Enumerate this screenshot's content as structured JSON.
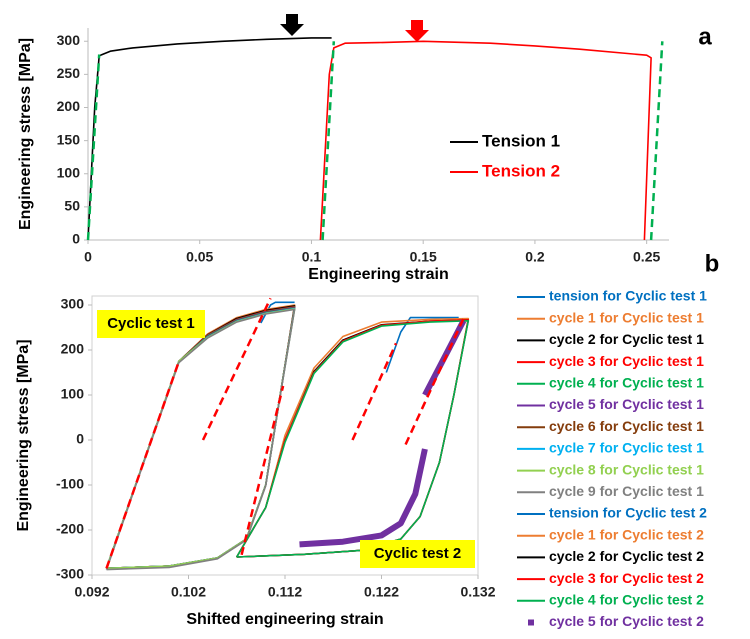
{
  "chart_data": [
    {
      "type": "line",
      "panel_label": "a",
      "x_label": "Engineering strain",
      "y_label": "Engineering stress [MPa]",
      "xlim": [
        0,
        0.26
      ],
      "xticks": [
        0,
        0.05,
        0.1,
        0.15,
        0.2,
        0.25
      ],
      "ylim": [
        0,
        320
      ],
      "yticks": [
        0,
        50,
        100,
        150,
        200,
        250,
        300
      ],
      "grid": false,
      "legend": "center right",
      "series": [
        {
          "name": "Tension 1",
          "color": "#000000",
          "x": [
            0,
            0.003,
            0.005,
            0.01,
            0.02,
            0.04,
            0.06,
            0.08,
            0.1,
            0.109
          ],
          "values": [
            0,
            200,
            278,
            285,
            290,
            296,
            300,
            303,
            305,
            305
          ]
        },
        {
          "name": "Tension 2",
          "color": "#ff0000",
          "x": [
            0.104,
            0.108,
            0.11,
            0.115,
            0.13,
            0.15,
            0.18,
            0.2,
            0.22,
            0.25,
            0.252,
            0.249
          ],
          "values": [
            0,
            250,
            290,
            297,
            298,
            300,
            297,
            293,
            288,
            279,
            275,
            0
          ]
        },
        {
          "color": "#00b050",
          "line_style": "dashed",
          "x": [
            0,
            0.005
          ],
          "values": [
            0,
            280
          ]
        },
        {
          "color": "#00b050",
          "line_style": "dashed",
          "x": [
            0.105,
            0.11
          ],
          "values": [
            0,
            300
          ]
        },
        {
          "color": "#00b050",
          "line_style": "dashed",
          "x": [
            0.252,
            0.257
          ],
          "values": [
            0,
            300
          ]
        }
      ]
    },
    {
      "type": "line",
      "panel_label": "b",
      "x_label": "Shifted engineering strain",
      "y_label": "Engineering stress [MPa]",
      "xlim": [
        0.092,
        0.132
      ],
      "xticks": [
        0.092,
        0.102,
        0.112,
        0.122,
        0.132
      ],
      "ylim": [
        -300,
        320
      ],
      "yticks": [
        -300,
        -200,
        -100,
        0,
        100,
        200,
        300
      ],
      "grid": false,
      "legend": "outside right",
      "annotations": [
        "Cyclic test 1",
        "Cyclic test 2"
      ],
      "series": [
        {
          "name": "tension for Cyclic test 1",
          "color": "#0070c0",
          "x": [
            0.1095,
            0.1105,
            0.111,
            0.113
          ],
          "values": [
            260,
            300,
            306,
            306
          ]
        },
        {
          "name": "cycle 1 for Cyclic test 1",
          "color": "#ed7d31",
          "x": [
            0.0935,
            0.097,
            0.101,
            0.104,
            0.107,
            0.11,
            0.113,
            0.1115,
            0.11,
            0.108,
            0.105,
            0.1,
            0.0935
          ],
          "values": [
            -285,
            -70,
            175,
            236,
            272,
            290,
            300,
            100,
            -100,
            -220,
            -262,
            -280,
            -285
          ]
        },
        {
          "name": "cycle 2 for Cyclic test 1",
          "color": "#000000",
          "x": [
            0.0935,
            0.097,
            0.101,
            0.104,
            0.107,
            0.11,
            0.113,
            0.1115,
            0.11,
            0.108,
            0.105,
            0.1,
            0.0935
          ],
          "values": [
            -285,
            -70,
            175,
            234,
            270,
            288,
            298,
            100,
            -100,
            -220,
            -262,
            -280,
            -285
          ]
        },
        {
          "name": "cycle 3 for Cyclic test 1",
          "color": "#ff0000",
          "x": [
            0.0935,
            0.097,
            0.101,
            0.104,
            0.107,
            0.11,
            0.113,
            0.1115,
            0.11,
            0.108,
            0.105,
            0.1,
            0.0935
          ],
          "values": [
            -285,
            -70,
            175,
            233,
            268,
            286,
            296,
            100,
            -100,
            -220,
            -262,
            -280,
            -285
          ]
        },
        {
          "name": "cycle 4 for Cyclic test 1",
          "color": "#00b050",
          "x": [
            0.0935,
            0.097,
            0.101,
            0.104,
            0.107,
            0.11,
            0.113,
            0.1115,
            0.11,
            0.108,
            0.105,
            0.1,
            0.0935
          ],
          "values": [
            -285,
            -70,
            175,
            232,
            267,
            285,
            295,
            100,
            -100,
            -220,
            -262,
            -280,
            -285
          ]
        },
        {
          "name": "cycle 5 for Cyclic test 1",
          "color": "#7030a0",
          "x": [
            0.0935,
            0.097,
            0.101,
            0.104,
            0.107,
            0.11,
            0.113,
            0.1115,
            0.11,
            0.108,
            0.105,
            0.1,
            0.0935
          ],
          "values": [
            -285,
            -70,
            175,
            231,
            266,
            284,
            294,
            100,
            -100,
            -220,
            -262,
            -280,
            -285
          ]
        },
        {
          "name": "cycle 6 for Cyclic test 1",
          "color": "#843c0c",
          "x": [
            0.0935,
            0.097,
            0.101,
            0.104,
            0.107,
            0.11,
            0.113,
            0.1115,
            0.11,
            0.108,
            0.105,
            0.1,
            0.0935
          ],
          "values": [
            -285,
            -70,
            175,
            230,
            265,
            283,
            293,
            100,
            -100,
            -220,
            -262,
            -280,
            -285
          ]
        },
        {
          "name": "cycle 7 for Cyclic test 1",
          "color": "#00b0f0",
          "x": [
            0.0935,
            0.097,
            0.101,
            0.104,
            0.107,
            0.11,
            0.113,
            0.1115,
            0.11,
            0.108,
            0.105,
            0.1,
            0.0935
          ],
          "values": [
            -285,
            -70,
            175,
            229,
            264,
            282,
            292,
            100,
            -100,
            -220,
            -262,
            -280,
            -285
          ]
        },
        {
          "name": "cycle 8 for Cyclic test 1",
          "color": "#92d050",
          "x": [
            0.0935,
            0.097,
            0.101,
            0.104,
            0.107,
            0.11,
            0.113,
            0.1115,
            0.11,
            0.108,
            0.105,
            0.1,
            0.0935
          ],
          "values": [
            -285,
            -70,
            175,
            228,
            263,
            281,
            291,
            100,
            -100,
            -220,
            -262,
            -280,
            -285
          ]
        },
        {
          "name": "cycle 9 for Cyclic test 1",
          "color": "#808080",
          "x": [
            0.0935,
            0.097,
            0.101,
            0.104,
            0.107,
            0.11,
            0.113,
            0.1115,
            0.11,
            0.108,
            0.105,
            0.1,
            0.0935
          ],
          "values": [
            -288,
            -72,
            172,
            227,
            262,
            280,
            290,
            98,
            -102,
            -222,
            -264,
            -283,
            -288
          ]
        },
        {
          "name": "tension for Cyclic test 2",
          "color": "#0070c0",
          "x": [
            0.1225,
            0.124,
            0.125,
            0.13
          ],
          "values": [
            150,
            240,
            272,
            272
          ]
        },
        {
          "name": "cycle 1 for Cyclic test 2",
          "color": "#ed7d31",
          "x": [
            0.107,
            0.11,
            0.112,
            0.115,
            0.118,
            0.122,
            0.127,
            0.131,
            0.1295,
            0.128,
            0.126,
            0.124,
            0.12,
            0.114,
            0.107
          ],
          "values": [
            -260,
            -150,
            10,
            160,
            230,
            262,
            268,
            270,
            100,
            -50,
            -170,
            -220,
            -245,
            -254,
            -260
          ]
        },
        {
          "name": "cycle 2 for Cyclic test 2",
          "color": "#000000",
          "x": [
            0.107,
            0.11,
            0.112,
            0.115,
            0.118,
            0.122,
            0.127,
            0.131,
            0.1295,
            0.128,
            0.126,
            0.124,
            0.12,
            0.114,
            0.107
          ],
          "values": [
            -260,
            -150,
            0,
            152,
            222,
            256,
            264,
            267,
            100,
            -50,
            -170,
            -220,
            -245,
            -254,
            -260
          ]
        },
        {
          "name": "cycle 3 for Cyclic test 2",
          "color": "#ff0000",
          "x": [
            0.107,
            0.11,
            0.112,
            0.115,
            0.118,
            0.122,
            0.127,
            0.131,
            0.1295,
            0.128,
            0.126,
            0.124,
            0.12,
            0.114,
            0.107
          ],
          "values": [
            -260,
            -150,
            0,
            150,
            220,
            255,
            264,
            267,
            100,
            -50,
            -170,
            -220,
            -245,
            -254,
            -260
          ]
        },
        {
          "name": "cycle 4 for Cyclic test 2",
          "color": "#00b050",
          "x": [
            0.107,
            0.11,
            0.112,
            0.115,
            0.118,
            0.122,
            0.127,
            0.131,
            0.1295,
            0.128,
            0.126,
            0.124,
            0.12,
            0.114,
            0.107
          ],
          "values": [
            -260,
            -150,
            -5,
            148,
            218,
            253,
            262,
            265,
            100,
            -50,
            -170,
            -220,
            -245,
            -254,
            -260
          ]
        },
        {
          "name": "cycle 5 for Cyclic test 2",
          "color": "#7030a0",
          "marker": "square",
          "x": [
            0.1135,
            0.118,
            0.122,
            0.124,
            0.1255,
            0.1265,
            null,
            0.1265,
            0.1305
          ],
          "values": [
            -232,
            -226,
            -212,
            -185,
            -120,
            -20,
            null,
            100,
            265
          ]
        },
        {
          "color": "#ff0000",
          "line_style": "dashed",
          "x": [
            0.0935,
            0.101
          ],
          "values": [
            -285,
            175
          ]
        },
        {
          "color": "#ff0000",
          "line_style": "dashed",
          "x": [
            0.1035,
            0.1105
          ],
          "values": [
            0,
            315
          ]
        },
        {
          "color": "#ff0000",
          "line_style": "dashed",
          "x": [
            0.1075,
            0.1118
          ],
          "values": [
            -255,
            120
          ]
        },
        {
          "color": "#ff0000",
          "line_style": "dashed",
          "x": [
            0.119,
            0.1235
          ],
          "values": [
            0,
            215
          ]
        },
        {
          "color": "#ff0000",
          "line_style": "dashed",
          "x": [
            0.1245,
            0.1305
          ],
          "values": [
            -10,
            270
          ]
        }
      ]
    }
  ]
}
